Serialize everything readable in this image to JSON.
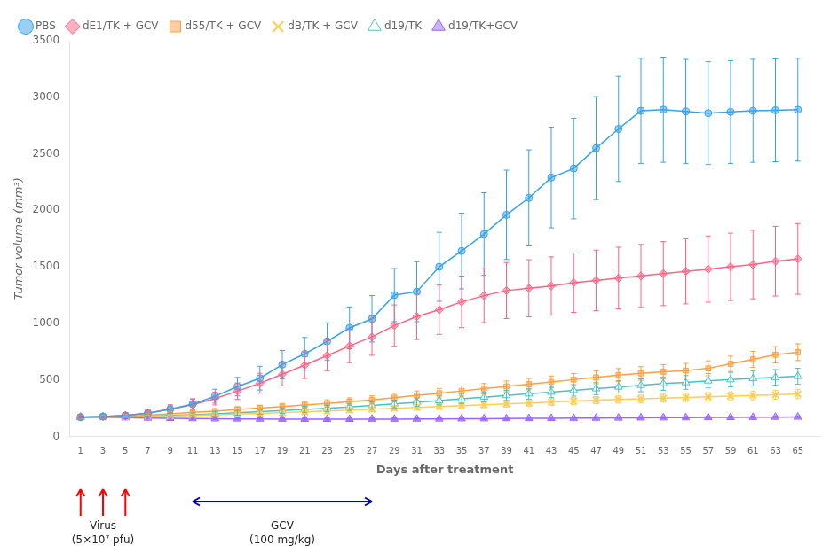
{
  "chart_data": {
    "type": "line",
    "xlabel": "Days after treatment",
    "ylabel": "Tumor volume (mm³)",
    "x": [
      1,
      3,
      5,
      7,
      9,
      11,
      13,
      15,
      17,
      19,
      21,
      23,
      25,
      27,
      29,
      31,
      33,
      35,
      37,
      39,
      41,
      43,
      45,
      47,
      49,
      51,
      53,
      55,
      57,
      59,
      61,
      63,
      65
    ],
    "series": [
      {
        "name": "PBS",
        "marker": "circle",
        "line_style": "solid",
        "values": [
          170,
          175,
          185,
          205,
          240,
          285,
          355,
          440,
          515,
          635,
          730,
          840,
          960,
          1040,
          1250,
          1280,
          1500,
          1640,
          1790,
          1960,
          2110,
          2290,
          2370,
          2550,
          2720,
          2880,
          2890,
          2875,
          2860,
          2870,
          2880,
          2885,
          2890
        ],
        "errors": [
          15,
          18,
          20,
          28,
          38,
          48,
          62,
          82,
          105,
          125,
          145,
          165,
          185,
          205,
          235,
          265,
          305,
          335,
          365,
          395,
          425,
          445,
          445,
          455,
          465,
          465,
          465,
          460,
          455,
          455,
          455,
          455,
          455
        ]
      },
      {
        "name": "dE1/TK + GCV",
        "marker": "diamond",
        "line_style": "solid",
        "values": [
          170,
          175,
          185,
          205,
          240,
          280,
          335,
          400,
          470,
          550,
          630,
          715,
          800,
          880,
          980,
          1060,
          1120,
          1190,
          1245,
          1290,
          1310,
          1330,
          1360,
          1380,
          1400,
          1420,
          1440,
          1460,
          1480,
          1500,
          1520,
          1550,
          1570
        ],
        "errors": [
          15,
          18,
          20,
          28,
          38,
          47,
          57,
          73,
          88,
          103,
          118,
          133,
          148,
          163,
          183,
          203,
          218,
          228,
          238,
          248,
          253,
          258,
          263,
          268,
          273,
          278,
          283,
          288,
          293,
          298,
          303,
          308,
          313
        ]
      },
      {
        "name": "d55/TK + GCV",
        "marker": "square",
        "line_style": "solid",
        "values": [
          170,
          172,
          178,
          188,
          200,
          212,
          223,
          238,
          250,
          263,
          278,
          292,
          307,
          322,
          342,
          362,
          382,
          402,
          422,
          442,
          462,
          482,
          502,
          522,
          542,
          557,
          572,
          582,
          602,
          642,
          682,
          722,
          745
        ],
        "errors": [
          10,
          12,
          14,
          16,
          18,
          20,
          22,
          24,
          26,
          28,
          30,
          32,
          34,
          36,
          38,
          40,
          42,
          44,
          46,
          48,
          50,
          52,
          54,
          56,
          58,
          60,
          62,
          64,
          66,
          68,
          70,
          72,
          74
        ]
      },
      {
        "name": "dB/TK + GCV",
        "marker": "x",
        "line_style": "solid",
        "values": [
          170,
          170,
          172,
          175,
          180,
          186,
          192,
          198,
          204,
          210,
          216,
          224,
          232,
          240,
          248,
          256,
          264,
          272,
          280,
          288,
          296,
          304,
          312,
          320,
          326,
          332,
          338,
          344,
          350,
          356,
          362,
          368,
          375
        ],
        "errors": [
          10,
          10,
          11,
          12,
          13,
          14,
          15,
          16,
          17,
          18,
          19,
          20,
          21,
          22,
          23,
          24,
          25,
          26,
          27,
          28,
          29,
          30,
          31,
          32,
          33,
          34,
          35,
          36,
          37,
          38,
          39,
          40,
          41
        ]
      },
      {
        "name": "d19/TK",
        "marker": "triangle-open",
        "line_style": "solid",
        "values": [
          170,
          172,
          175,
          178,
          186,
          192,
          200,
          208,
          218,
          228,
          238,
          248,
          260,
          273,
          287,
          302,
          317,
          332,
          347,
          362,
          377,
          392,
          407,
          422,
          437,
          452,
          467,
          477,
          492,
          502,
          512,
          522,
          532
        ],
        "errors": [
          10,
          11,
          12,
          13,
          15,
          17,
          19,
          21,
          23,
          25,
          27,
          29,
          31,
          33,
          35,
          37,
          39,
          41,
          43,
          45,
          47,
          49,
          51,
          53,
          55,
          57,
          59,
          61,
          63,
          65,
          67,
          69,
          71
        ]
      },
      {
        "name": "d19/TK+GCV",
        "marker": "triangle",
        "line_style": "solid",
        "values": [
          170,
          168,
          165,
          162,
          160,
          158,
          156,
          155,
          154,
          153,
          152,
          152,
          152,
          153,
          153,
          154,
          155,
          156,
          157,
          158,
          159,
          160,
          161,
          162,
          163,
          164,
          165,
          166,
          167,
          168,
          169,
          170,
          171
        ],
        "errors": [
          8,
          8,
          9,
          9,
          9,
          9,
          10,
          10,
          10,
          10,
          10,
          10,
          10,
          10,
          10,
          10,
          10,
          10,
          10,
          10,
          10,
          10,
          10,
          10,
          10,
          10,
          10,
          10,
          10,
          10,
          10,
          10,
          10
        ]
      }
    ],
    "xlim": [
      0,
      67
    ],
    "xticks": [
      1,
      3,
      5,
      7,
      9,
      11,
      13,
      15,
      17,
      19,
      21,
      23,
      25,
      27,
      29,
      31,
      33,
      35,
      37,
      39,
      41,
      43,
      45,
      47,
      49,
      51,
      53,
      55,
      57,
      59,
      61,
      63,
      65
    ],
    "ylim": [
      0,
      3500
    ],
    "yticks": [
      0,
      500,
      1000,
      1500,
      2000,
      2500,
      3000,
      3500
    ],
    "grid": false,
    "legend": "upper left",
    "annotations": [
      {
        "type": "arrow",
        "x": 1,
        "color": "#ff0000"
      },
      {
        "type": "arrow",
        "x": 3,
        "color": "#ff0000"
      },
      {
        "type": "arrow",
        "x": 5,
        "color": "#ff0000"
      },
      {
        "type": "range_arrow",
        "x": [
          11,
          27
        ],
        "color": "#0000bb"
      },
      {
        "text": "Virus",
        "x": 3
      },
      {
        "text": "(5×10⁷ pfu)",
        "x": 3
      },
      {
        "text": "GCV",
        "x": 19
      },
      {
        "text": "(100 mg/kg)",
        "x": 19
      }
    ]
  }
}
